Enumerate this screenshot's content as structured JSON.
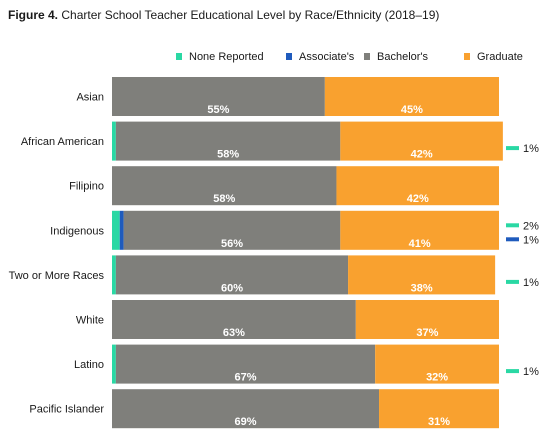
{
  "figure": {
    "number_label": "Figure 4.",
    "title_text": "Charter School Teacher Educational Level by Race/Ethnicity (2018–19)"
  },
  "chart_data": {
    "type": "bar",
    "orientation": "horizontal",
    "stacked": true,
    "normalized_percent": true,
    "xlim": [
      0,
      100
    ],
    "grid": false,
    "legend_position": "top-right",
    "categories": [
      "Asian",
      "African American",
      "Filipino",
      "Indigenous",
      "Two or More Races",
      "White",
      "Latino",
      "Pacific Islander"
    ],
    "series": [
      {
        "name": "None Reported",
        "color": "#2ad8a4",
        "values": [
          0,
          1,
          0,
          2,
          1,
          0,
          1,
          0
        ]
      },
      {
        "name": "Associate's",
        "color": "#1f5bbd",
        "values": [
          0,
          0,
          0,
          1,
          0,
          0,
          0,
          0
        ]
      },
      {
        "name": "Bachelor's",
        "color": "#7f7f7b",
        "values": [
          55,
          58,
          58,
          56,
          60,
          63,
          67,
          69
        ]
      },
      {
        "name": "Graduate",
        "color": "#f9a12f",
        "values": [
          45,
          42,
          42,
          41,
          38,
          37,
          32,
          31
        ]
      }
    ],
    "inside_labels": {
      "Bachelor's": [
        "55%",
        "58%",
        "58%",
        "56%",
        "60%",
        "63%",
        "67%",
        "69%"
      ],
      "Graduate": [
        "45%",
        "42%",
        "42%",
        "41%",
        "38%",
        "37%",
        "32%",
        "31%"
      ]
    },
    "outside_labels": [
      {
        "category": "African American",
        "series": "None Reported",
        "text": "1%"
      },
      {
        "category": "Indigenous",
        "series": "None Reported",
        "text": "2%"
      },
      {
        "category": "Indigenous",
        "series": "Associate's",
        "text": "1%"
      },
      {
        "category": "Two or More Races",
        "series": "None Reported",
        "text": "1%"
      },
      {
        "category": "Latino",
        "series": "None Reported",
        "text": "1%"
      }
    ]
  }
}
